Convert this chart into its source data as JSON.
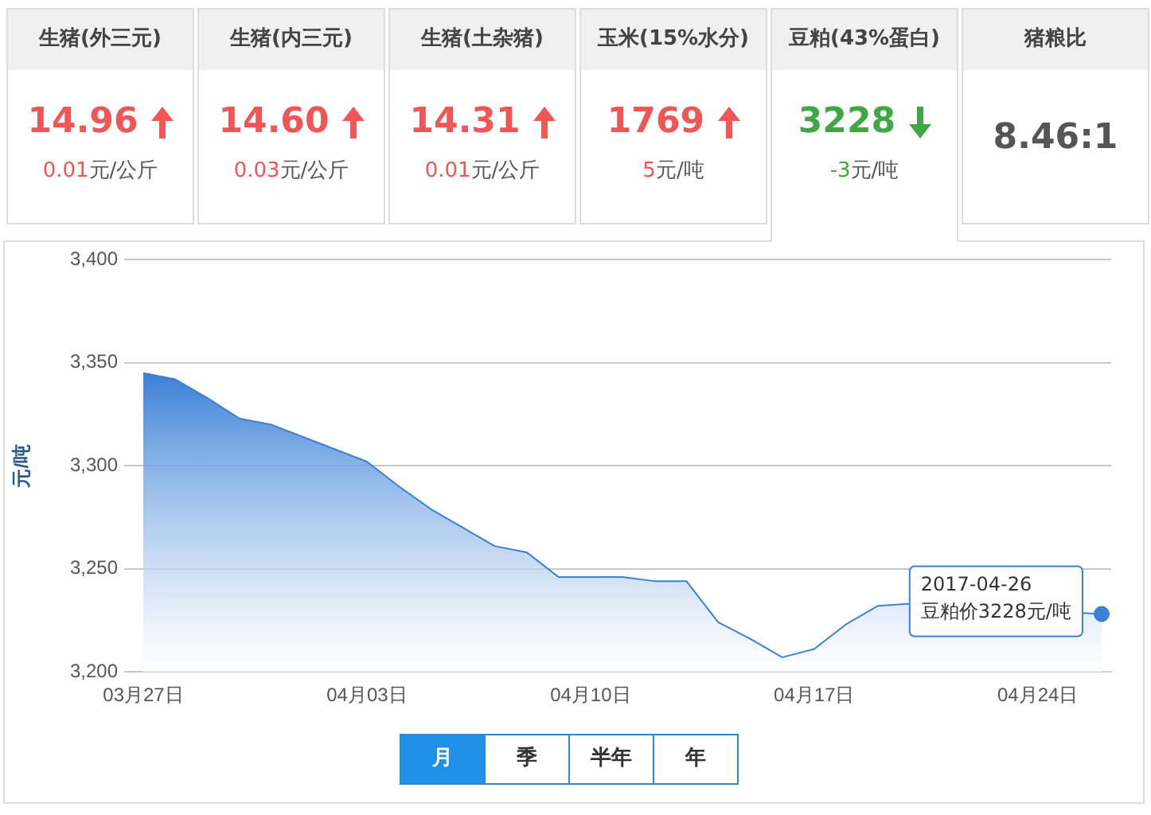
{
  "chart_data": [
    {
      "type": "other",
      "title": "生猪(外三元)",
      "value_labels": [
        "14.96"
      ],
      "annotations": [
        "0.01元/公斤"
      ],
      "color": "#f25555"
    },
    {
      "type": "other",
      "title": "生猪(内三元)",
      "value_labels": [
        "14.60"
      ],
      "annotations": [
        "0.03元/公斤"
      ],
      "color": "#f25555"
    },
    {
      "type": "other",
      "title": "生猪(土杂猪)",
      "value_labels": [
        "14.31"
      ],
      "annotations": [
        "0.01元/公斤"
      ],
      "color": "#f25555"
    },
    {
      "type": "other",
      "title": "玉米(15%水分)",
      "value_labels": [
        "1769"
      ],
      "annotations": [
        "5元/吨"
      ],
      "color": "#f25555"
    },
    {
      "type": "other",
      "title": "豆粕(43%蛋白)",
      "value_labels": [
        "3228"
      ],
      "annotations": [
        "-3元/吨"
      ],
      "color": "#3fa845"
    },
    {
      "type": "other",
      "title": "猪粮比",
      "value_labels": [
        "8.46:1"
      ],
      "color": "#555555"
    },
    {
      "type": "area",
      "ylabel": "元/吨",
      "x": [
        "2017-03-27",
        "2017-03-28",
        "2017-03-29",
        "2017-03-30",
        "2017-03-31",
        "2017-04-01",
        "2017-04-02",
        "2017-04-03",
        "2017-04-04",
        "2017-04-05",
        "2017-04-06",
        "2017-04-07",
        "2017-04-08",
        "2017-04-09",
        "2017-04-10",
        "2017-04-11",
        "2017-04-12",
        "2017-04-13",
        "2017-04-14",
        "2017-04-15",
        "2017-04-16",
        "2017-04-17",
        "2017-04-18",
        "2017-04-19",
        "2017-04-20",
        "2017-04-21",
        "2017-04-22",
        "2017-04-23",
        "2017-04-24",
        "2017-04-25",
        "2017-04-26"
      ],
      "series": [
        {
          "color": "#3a80d6",
          "values": [
            3345,
            3342,
            3333,
            3323,
            3320,
            3314,
            3308,
            3302,
            3290,
            3279,
            3270,
            3261,
            3258,
            3246,
            3246,
            3246,
            3244,
            3244,
            3224,
            3216,
            3207,
            3211,
            3223,
            3232,
            3233,
            null,
            null,
            null,
            null,
            null,
            3228
          ]
        }
      ],
      "ylim": [
        3200,
        3400
      ],
      "yticks": [
        {
          "value": 3200,
          "label": "3,200"
        },
        {
          "value": 3250,
          "label": "3,250"
        },
        {
          "value": 3300,
          "label": "3,300"
        },
        {
          "value": 3350,
          "label": "3,350"
        },
        {
          "value": 3400,
          "label": "3,400"
        }
      ],
      "xlim": [
        "2017-03-27",
        "2017-04-26"
      ],
      "xticks": [
        {
          "value": "2017-03-27",
          "label": "03月27日"
        },
        {
          "value": "2017-04-03",
          "label": "04月03日"
        },
        {
          "value": "2017-04-10",
          "label": "04月10日"
        },
        {
          "value": "2017-04-17",
          "label": "04月17日"
        },
        {
          "value": "2017-04-24",
          "label": "04月24日"
        }
      ],
      "grid": "y",
      "legend": false,
      "annotations": [
        {
          "text": "2017-04-26\n豆粕价3228元/吨",
          "x": "2017-04-26",
          "y": 3228
        },
        "月",
        "季",
        "半年",
        "年"
      ]
    }
  ]
}
